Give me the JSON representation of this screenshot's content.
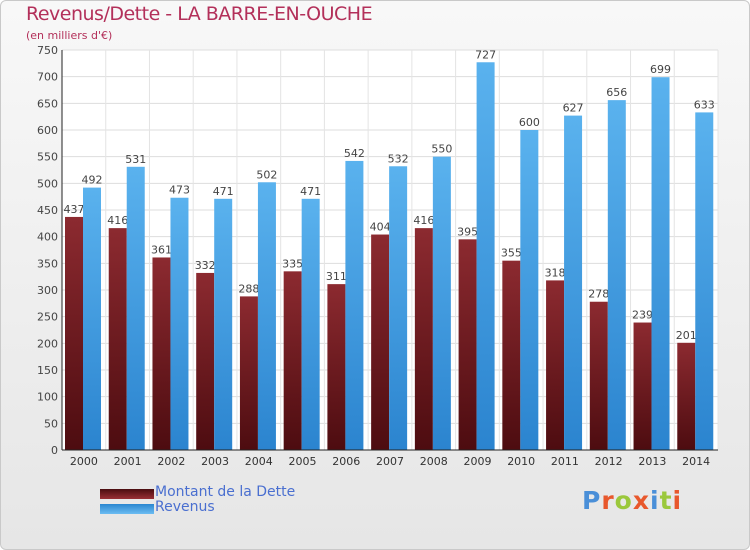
{
  "chart_data": {
    "type": "bar",
    "title": "Revenus/Dette - LA BARRE-EN-OUCHE",
    "subtitle": "(en milliers d'€)",
    "categories": [
      "2000",
      "2001",
      "2002",
      "2003",
      "2004",
      "2005",
      "2006",
      "2007",
      "2008",
      "2009",
      "2010",
      "2011",
      "2012",
      "2013",
      "2014"
    ],
    "series": [
      {
        "name": "Montant de la Dette",
        "color": "#7a1d22",
        "values": [
          437,
          416,
          361,
          332,
          288,
          335,
          311,
          404,
          416,
          395,
          355,
          318,
          278,
          239,
          201
        ]
      },
      {
        "name": "Revenus",
        "color": "#3d9ee6",
        "values": [
          492,
          531,
          473,
          471,
          502,
          471,
          542,
          532,
          550,
          727,
          600,
          627,
          656,
          699,
          633
        ]
      }
    ],
    "ylim": [
      0,
      750
    ],
    "yticks": [
      0,
      50,
      100,
      150,
      200,
      250,
      300,
      350,
      400,
      450,
      500,
      550,
      600,
      650,
      700,
      750
    ],
    "grid": true,
    "legend": "bottom-left"
  },
  "logo": {
    "letters": [
      "P",
      "r",
      "o",
      "x",
      "i",
      "t",
      "i"
    ],
    "colors": [
      "#4a8fd8",
      "#e8582c",
      "#9bc83c",
      "#e8582c",
      "#4a8fd8",
      "#9bc83c",
      "#e8582c"
    ]
  }
}
